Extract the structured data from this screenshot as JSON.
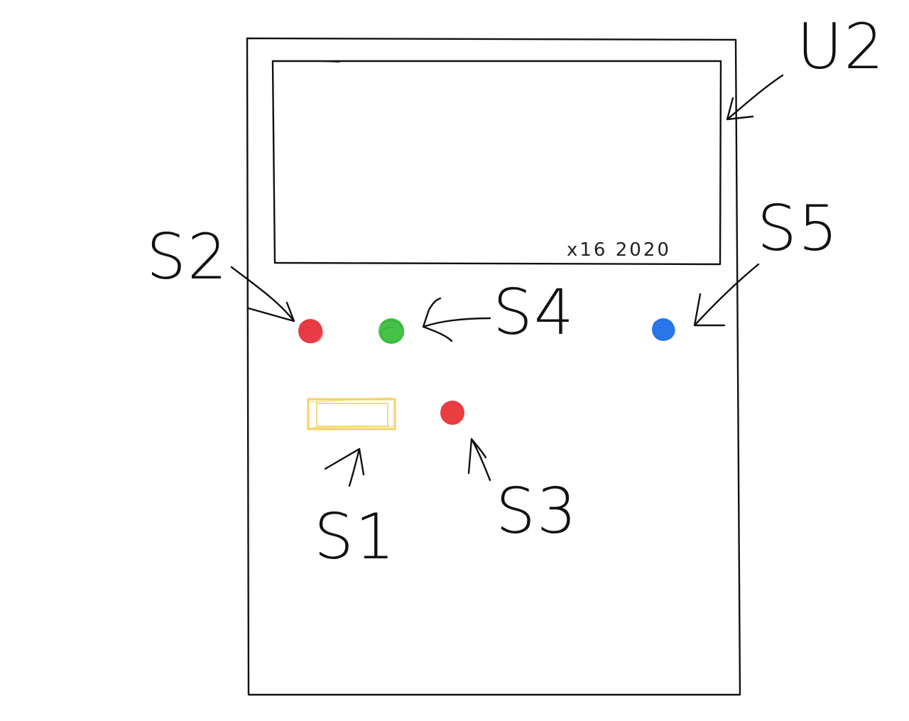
{
  "labels": {
    "display": "U2",
    "led_left": "S2",
    "led_middle": "S4",
    "led_right": "S5",
    "switch": "S1",
    "led_lower": "S3",
    "display_marking": "x16 2020"
  },
  "colors": {
    "led_left": "#e8303a",
    "led_middle": "#3dbf3f",
    "led_right": "#1f6fe8",
    "led_lower": "#e83438",
    "switch_outline": "#f3d264",
    "ink": "#111111"
  },
  "icons": {
    "led_left": "red-led-icon",
    "led_middle": "green-led-icon",
    "led_right": "blue-led-icon",
    "led_lower": "red-led-icon",
    "switch": "slide-switch-icon"
  }
}
